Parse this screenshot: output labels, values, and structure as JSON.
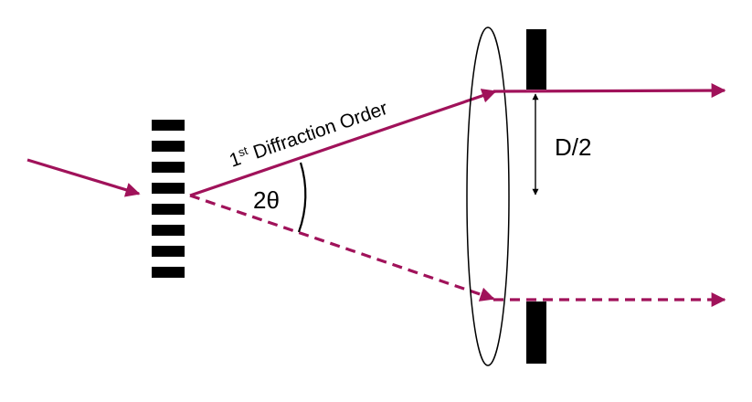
{
  "diagram": {
    "labels": {
      "order_prefix": "1",
      "order_superscript": "st",
      "order_text": " Diffraction Order",
      "angle": "2θ",
      "aperture": "D/2"
    },
    "grating": {
      "slit_count": 8
    },
    "colors": {
      "beam": "#a0125a",
      "ink": "#000000",
      "background": "#ffffff"
    }
  }
}
